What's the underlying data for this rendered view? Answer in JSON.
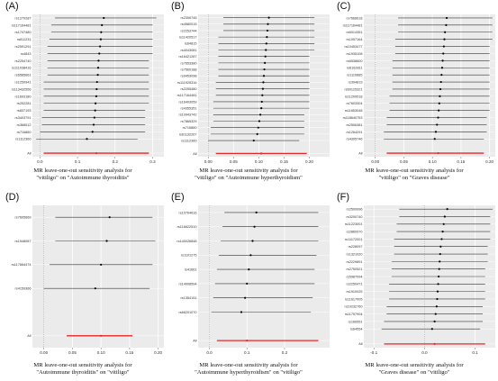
{
  "chart_data": [
    {
      "letter": "(A)",
      "type": "forest",
      "caption": [
        "MR leave-one-out sensitivity analysis for",
        "\"vitiligo\" on \"Autoimmune thyroiditis\""
      ],
      "xlim": [
        -0.02,
        0.33
      ],
      "xticks": [
        0.0,
        0.1,
        0.2,
        0.3
      ],
      "xticklabels": [
        "0.0",
        "0.1",
        "0.2",
        "0.3"
      ],
      "all_label": "All",
      "all": {
        "est": 0.15,
        "lo": 0.01,
        "hi": 0.29
      },
      "snps": [
        {
          "label": "rs1270287",
          "est": 0.17,
          "lo": 0.04,
          "hi": 0.31
        },
        {
          "label": "rs117164481",
          "est": 0.165,
          "lo": 0.03,
          "hi": 0.3
        },
        {
          "label": "rs1747480",
          "est": 0.163,
          "lo": 0.03,
          "hi": 0.3
        },
        {
          "label": "rs811231",
          "est": 0.162,
          "lo": 0.025,
          "hi": 0.3
        },
        {
          "label": "rs2591291",
          "est": 0.16,
          "lo": 0.02,
          "hi": 0.3
        },
        {
          "label": "rs4843",
          "est": 0.158,
          "lo": 0.02,
          "hi": 0.3
        },
        {
          "label": "rs2254740",
          "est": 0.156,
          "lo": 0.02,
          "hi": 0.29
        },
        {
          "label": "rs111038416",
          "est": 0.155,
          "lo": 0.02,
          "hi": 0.29
        },
        {
          "label": "rs6585661",
          "est": 0.154,
          "lo": 0.02,
          "hi": 0.29
        },
        {
          "label": "rs1250941",
          "est": 0.152,
          "lo": 0.01,
          "hi": 0.29
        },
        {
          "label": "rs113432556",
          "est": 0.151,
          "lo": 0.01,
          "hi": 0.29
        },
        {
          "label": "rs1693180",
          "est": 0.15,
          "lo": 0.01,
          "hi": 0.29
        },
        {
          "label": "rs252281",
          "est": 0.148,
          "lo": 0.01,
          "hi": 0.29
        },
        {
          "label": "rs837193",
          "est": 0.147,
          "lo": 0.01,
          "hi": 0.28
        },
        {
          "label": "rs3403791",
          "est": 0.145,
          "lo": 0.005,
          "hi": 0.28
        },
        {
          "label": "rs368512",
          "est": 0.143,
          "lo": 0.005,
          "hi": 0.28
        },
        {
          "label": "rs716860",
          "est": 0.14,
          "lo": 0.0,
          "hi": 0.28
        },
        {
          "label": "rs1112360",
          "est": 0.125,
          "lo": -0.01,
          "hi": 0.26
        }
      ]
    },
    {
      "letter": "(B)",
      "type": "forest",
      "caption": [
        "MR leave-one-out sensitivity analysis for",
        "\"vitiligo\" on \"Autoimmune hyperthyroidism\""
      ],
      "xlim": [
        -0.02,
        0.24
      ],
      "xticks": [
        0.0,
        0.05,
        0.1,
        0.15,
        0.2
      ],
      "xticklabels": [
        "0.00",
        "0.05",
        "0.10",
        "0.15",
        "0.20"
      ],
      "all_label": "All",
      "all": {
        "est": 0.105,
        "lo": 0.015,
        "hi": 0.195
      },
      "snps": [
        {
          "label": "rs2306745",
          "est": 0.12,
          "lo": 0.03,
          "hi": 0.21
        },
        {
          "label": "rs4580015",
          "est": 0.118,
          "lo": 0.03,
          "hi": 0.21
        },
        {
          "label": "rs2253744",
          "est": 0.117,
          "lo": 0.03,
          "hi": 0.21
        },
        {
          "label": "rs11420517",
          "est": 0.116,
          "lo": 0.02,
          "hi": 0.21
        },
        {
          "label": "rs64815",
          "est": 0.115,
          "lo": 0.02,
          "hi": 0.21
        },
        {
          "label": "rs4043081",
          "est": 0.114,
          "lo": 0.02,
          "hi": 0.21
        },
        {
          "label": "rs16421287",
          "est": 0.113,
          "lo": 0.02,
          "hi": 0.2
        },
        {
          "label": "rs7653380",
          "est": 0.112,
          "lo": 0.02,
          "hi": 0.2
        },
        {
          "label": "rs7560188",
          "est": 0.111,
          "lo": 0.02,
          "hi": 0.2
        },
        {
          "label": "rs9453098",
          "est": 0.11,
          "lo": 0.02,
          "hi": 0.2
        },
        {
          "label": "rs111925316",
          "est": 0.109,
          "lo": 0.015,
          "hi": 0.2
        },
        {
          "label": "rs2255480",
          "est": 0.108,
          "lo": 0.015,
          "hi": 0.2
        },
        {
          "label": "rs117164481",
          "est": 0.107,
          "lo": 0.015,
          "hi": 0.2
        },
        {
          "label": "rs16493059",
          "est": 0.106,
          "lo": 0.01,
          "hi": 0.2
        },
        {
          "label": "rs4355351",
          "est": 0.105,
          "lo": 0.01,
          "hi": 0.2
        },
        {
          "label": "rs10943742",
          "est": 0.103,
          "lo": 0.01,
          "hi": 0.19
        },
        {
          "label": "rs7865329",
          "est": 0.101,
          "lo": 0.01,
          "hi": 0.19
        },
        {
          "label": "rs716860",
          "est": 0.099,
          "lo": 0.005,
          "hi": 0.19
        },
        {
          "label": "rs61132267",
          "est": 0.097,
          "lo": 0.005,
          "hi": 0.19
        },
        {
          "label": "rs1112360",
          "est": 0.09,
          "lo": 0.0,
          "hi": 0.18
        }
      ]
    },
    {
      "letter": "(C)",
      "type": "forest",
      "caption": [
        "MR leave-one-out sensitivity analysis for",
        "\"vitiligo\" on \"Graves disease\""
      ],
      "xlim": [
        -0.02,
        0.21
      ],
      "xticks": [
        0.0,
        0.05,
        0.1,
        0.15,
        0.2
      ],
      "xticklabels": [
        "0.00",
        "0.05",
        "0.10",
        "0.15",
        "0.20"
      ],
      "all_label": "All",
      "all": {
        "est": 0.11,
        "lo": 0.02,
        "hi": 0.19
      },
      "snps": [
        {
          "label": "rs7666618",
          "est": 0.125,
          "lo": 0.04,
          "hi": 0.205
        },
        {
          "label": "rs117164481",
          "est": 0.124,
          "lo": 0.04,
          "hi": 0.205
        },
        {
          "label": "rs6014351",
          "est": 0.122,
          "lo": 0.04,
          "hi": 0.205
        },
        {
          "label": "rs1057164",
          "est": 0.121,
          "lo": 0.035,
          "hi": 0.205
        },
        {
          "label": "rs10453477",
          "est": 0.12,
          "lo": 0.035,
          "hi": 0.2
        },
        {
          "label": "rs1935108",
          "est": 0.119,
          "lo": 0.035,
          "hi": 0.2
        },
        {
          "label": "rs6538600",
          "est": 0.118,
          "lo": 0.03,
          "hi": 0.2
        },
        {
          "label": "rs6162811",
          "est": 0.117,
          "lo": 0.03,
          "hi": 0.2
        },
        {
          "label": "rs1110885",
          "est": 0.116,
          "lo": 0.03,
          "hi": 0.2
        },
        {
          "label": "rs394819",
          "est": 0.115,
          "lo": 0.03,
          "hi": 0.2
        },
        {
          "label": "rs60125321",
          "est": 0.114,
          "lo": 0.03,
          "hi": 0.2
        },
        {
          "label": "rs11209518",
          "est": 0.113,
          "lo": 0.025,
          "hi": 0.2
        },
        {
          "label": "rs7603304",
          "est": 0.112,
          "lo": 0.025,
          "hi": 0.2
        },
        {
          "label": "rs11653048",
          "est": 0.111,
          "lo": 0.025,
          "hi": 0.2
        },
        {
          "label": "rs118640753",
          "est": 0.11,
          "lo": 0.02,
          "hi": 0.195
        },
        {
          "label": "rs2506381",
          "est": 0.108,
          "lo": 0.02,
          "hi": 0.195
        },
        {
          "label": "rs1264291",
          "est": 0.106,
          "lo": 0.015,
          "hi": 0.195
        },
        {
          "label": "rs4305746",
          "est": 0.104,
          "lo": 0.015,
          "hi": 0.19
        }
      ]
    },
    {
      "letter": "(D)",
      "type": "forest",
      "caption": [
        "MR leave-one-out sensitivity analysis for",
        "\"Autoimmune thyroiditis\" on \"vitiligo\""
      ],
      "xlim": [
        -0.02,
        0.21
      ],
      "xticks": [
        0.0,
        0.05,
        0.1,
        0.15,
        0.2
      ],
      "xticklabels": [
        "0.00",
        "0.05",
        "0.10",
        "0.15",
        "0.20"
      ],
      "all_label": "All",
      "all": {
        "est": 0.1,
        "lo": 0.04,
        "hi": 0.155
      },
      "snps": [
        {
          "label": "rs7605669",
          "est": 0.115,
          "lo": 0.02,
          "hi": 0.19
        },
        {
          "label": "rs1548087",
          "est": 0.11,
          "lo": 0.02,
          "hi": 0.195
        },
        {
          "label": "rs117664474",
          "est": 0.1,
          "lo": 0.01,
          "hi": 0.19
        },
        {
          "label": "rs4159366",
          "est": 0.09,
          "lo": 0.0,
          "hi": 0.185
        }
      ]
    },
    {
      "letter": "(E)",
      "type": "forest",
      "caption": [
        "MR leave-one-out sensitivity analysis for",
        "\"Autoimmune hyperthyroidism\" on \"vitiligo\""
      ],
      "xlim": [
        -0.03,
        0.32
      ],
      "xticks": [
        0.0,
        0.1,
        0.2
      ],
      "xticklabels": [
        "0.0",
        "0.1",
        "0.2"
      ],
      "all_label": "All",
      "all": {
        "est": 0.1,
        "lo": 0.02,
        "hi": 0.29
      },
      "snps": [
        {
          "label": "rs10764616",
          "est": 0.125,
          "lo": 0.04,
          "hi": 0.29
        },
        {
          "label": "rs116622510",
          "est": 0.12,
          "lo": 0.035,
          "hi": 0.29
        },
        {
          "label": "rs140026848",
          "est": 0.115,
          "lo": 0.03,
          "hi": 0.29
        },
        {
          "label": "rs1101275",
          "est": 0.11,
          "lo": 0.025,
          "hi": 0.285
        },
        {
          "label": "rs41661",
          "est": 0.105,
          "lo": 0.02,
          "hi": 0.28
        },
        {
          "label": "rs14008594",
          "est": 0.1,
          "lo": 0.015,
          "hi": 0.28
        },
        {
          "label": "rs1354151",
          "est": 0.095,
          "lo": 0.01,
          "hi": 0.275
        },
        {
          "label": "rs66201070",
          "est": 0.085,
          "lo": 0.005,
          "hi": 0.27
        }
      ]
    },
    {
      "letter": "(F)",
      "type": "forest",
      "caption": [
        "MR leave-one-out sensitivity analysis for",
        "\"Graves disease\" on \"vitiligo\""
      ],
      "xlim": [
        -0.12,
        0.14
      ],
      "xticks": [
        -0.1,
        0.0,
        0.1
      ],
      "xticklabels": [
        "-0.1",
        "0.0",
        "0.1"
      ],
      "all_label": "All",
      "all": {
        "est": 0.02,
        "lo": -0.08,
        "hi": 0.12
      },
      "snps": [
        {
          "label": "rs2509996",
          "est": 0.045,
          "lo": -0.05,
          "hi": 0.135
        },
        {
          "label": "rs3200740",
          "est": 0.04,
          "lo": -0.05,
          "hi": 0.13
        },
        {
          "label": "rs11223001",
          "est": 0.038,
          "lo": -0.055,
          "hi": 0.13
        },
        {
          "label": "rs2860970",
          "est": 0.036,
          "lo": -0.055,
          "hi": 0.13
        },
        {
          "label": "rs11172001",
          "est": 0.034,
          "lo": -0.06,
          "hi": 0.13
        },
        {
          "label": "rs228097",
          "est": 0.032,
          "lo": -0.06,
          "hi": 0.125
        },
        {
          "label": "rs1321020",
          "est": 0.031,
          "lo": -0.06,
          "hi": 0.125
        },
        {
          "label": "rs2229891",
          "est": 0.03,
          "lo": -0.065,
          "hi": 0.125
        },
        {
          "label": "rs2750521",
          "est": 0.029,
          "lo": -0.065,
          "hi": 0.12
        },
        {
          "label": "rs5987094",
          "est": 0.028,
          "lo": -0.065,
          "hi": 0.12
        },
        {
          "label": "rs2250471",
          "est": 0.027,
          "lo": -0.07,
          "hi": 0.12
        },
        {
          "label": "rs1910025",
          "est": 0.026,
          "lo": -0.07,
          "hi": 0.12
        },
        {
          "label": "rs11617005",
          "est": 0.025,
          "lo": -0.07,
          "hi": 0.12
        },
        {
          "label": "rs10232760",
          "est": 0.024,
          "lo": -0.075,
          "hi": 0.115
        },
        {
          "label": "rs11757904",
          "est": 0.022,
          "lo": -0.075,
          "hi": 0.115
        },
        {
          "label": "rs166551",
          "est": 0.02,
          "lo": -0.08,
          "hi": 0.115
        },
        {
          "label": "rs64554",
          "est": 0.015,
          "lo": -0.085,
          "hi": 0.11
        }
      ]
    }
  ],
  "colors": {
    "panel_bg": "#ebebeb",
    "grid": "#ffffff",
    "ci_line": "#333333",
    "point": "#000000",
    "all_line": "#e8262a",
    "zero_line": "#888888"
  }
}
